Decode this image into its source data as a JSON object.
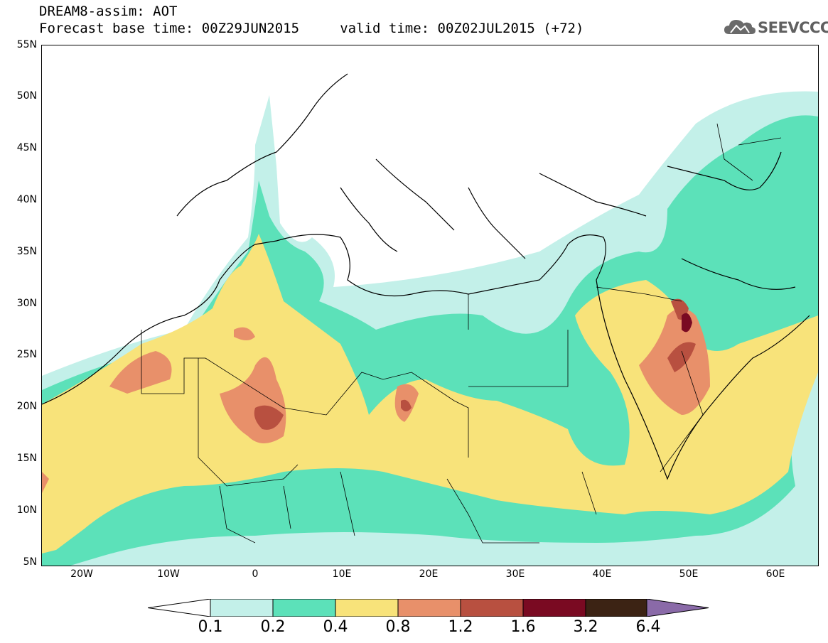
{
  "title": {
    "line1": "DREAM8-assim: AOT",
    "line2": "Forecast base time: 00Z29JUN2015     valid time: 00Z02JUL2015 (+72)"
  },
  "logo": {
    "text": "SEEVCCC",
    "icon": "cloud-icon"
  },
  "map": {
    "lat_labels": [
      "55N",
      "50N",
      "45N",
      "40N",
      "35N",
      "30N",
      "25N",
      "20N",
      "15N",
      "10N",
      "5N"
    ],
    "lon_labels": [
      "20W",
      "10W",
      "0",
      "10E",
      "20E",
      "30E",
      "40E",
      "50E",
      "60E"
    ]
  },
  "colorbar": {
    "labels": [
      "0.1",
      "0.2",
      "0.4",
      "0.8",
      "1.2",
      "1.6",
      "3.2",
      "6.4"
    ],
    "colors": [
      "#ffffff",
      "#c3f0e9",
      "#5ce1b9",
      "#f8e37a",
      "#e8906a",
      "#b85040",
      "#7a0a22",
      "#3c2314",
      "#8a6aa8"
    ]
  }
}
